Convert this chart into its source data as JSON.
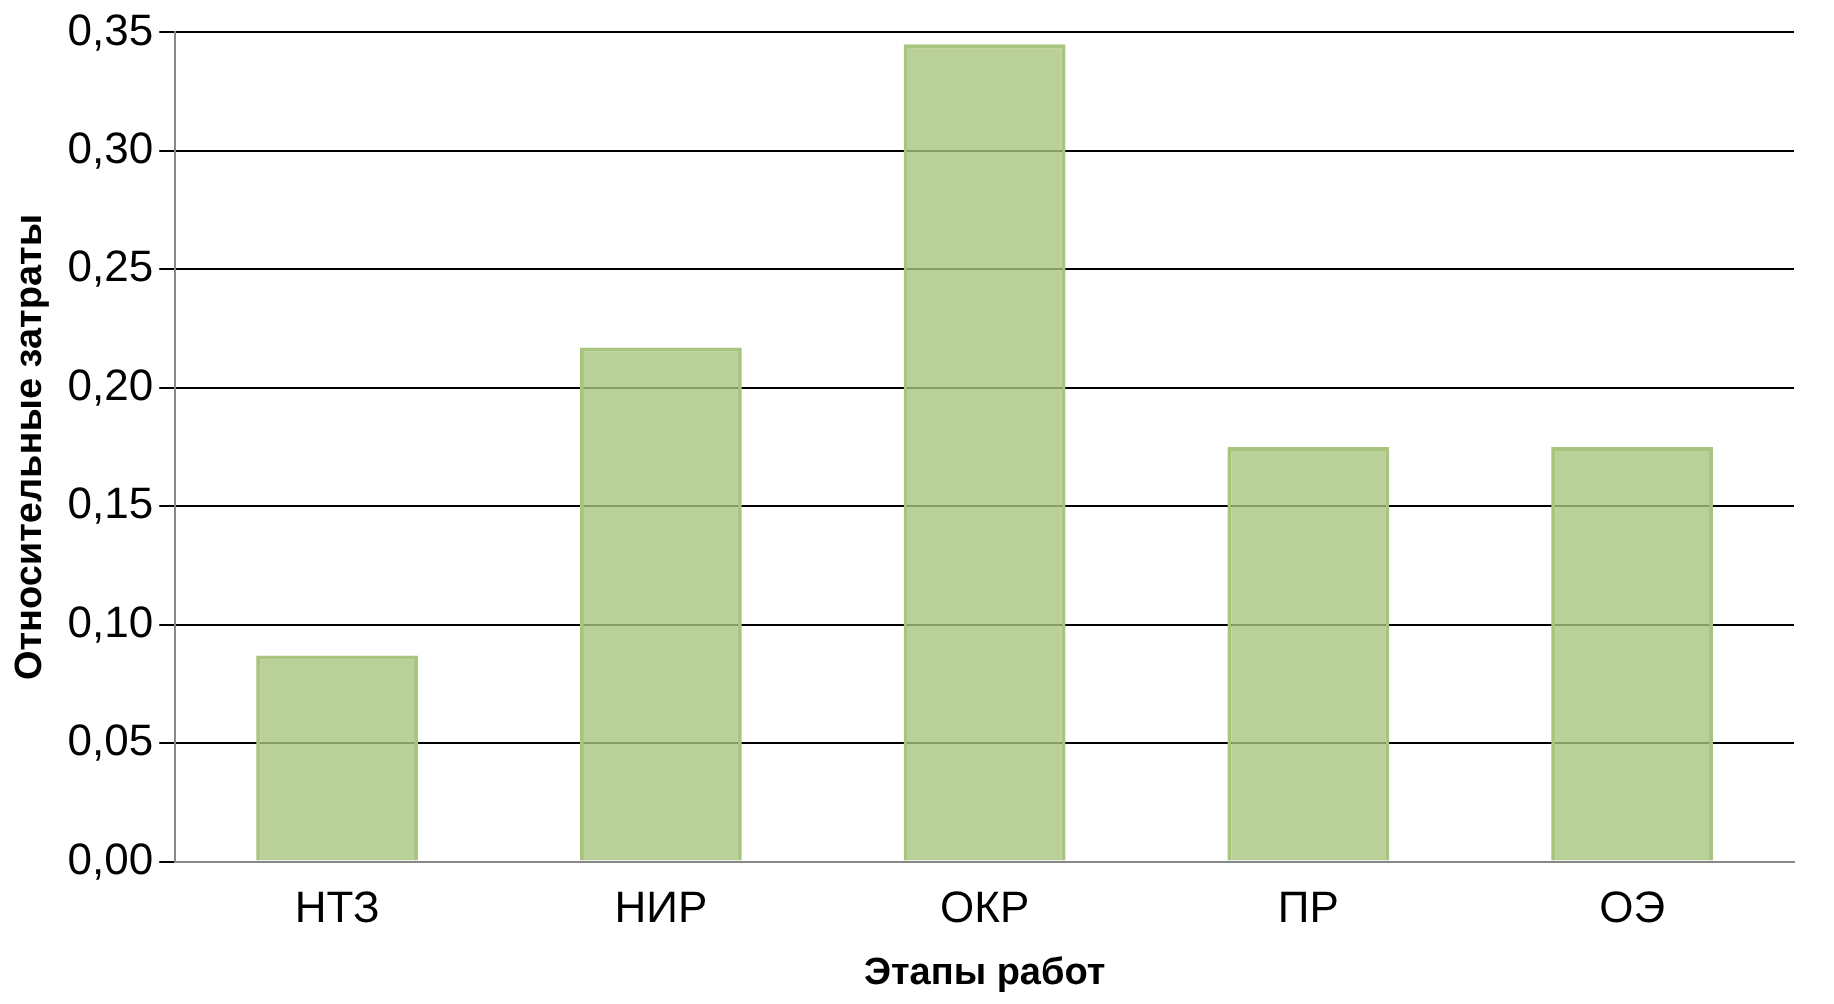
{
  "chart_data": {
    "type": "bar",
    "xlabel": "Этапы работ",
    "ylabel": "Относительные затраты",
    "categories": [
      "НТЗ",
      "НИР",
      "ОКР",
      "ПР",
      "ОЭ"
    ],
    "values": [
      0.087,
      0.217,
      0.345,
      0.175,
      0.175
    ],
    "color": "#a9c47f",
    "ylim": [
      0,
      0.35
    ],
    "yticks": [
      {
        "value": 0,
        "label": "0,00"
      },
      {
        "value": 0.05,
        "label": "0,05"
      },
      {
        "value": 0.1,
        "label": "0,10"
      },
      {
        "value": 0.15,
        "label": "0,15"
      },
      {
        "value": 0.2,
        "label": "0,20"
      },
      {
        "value": 0.25,
        "label": "0,25"
      },
      {
        "value": 0.3,
        "label": "0,30"
      },
      {
        "value": 0.35,
        "label": "0,35"
      }
    ],
    "grid": "y",
    "legend": false
  }
}
